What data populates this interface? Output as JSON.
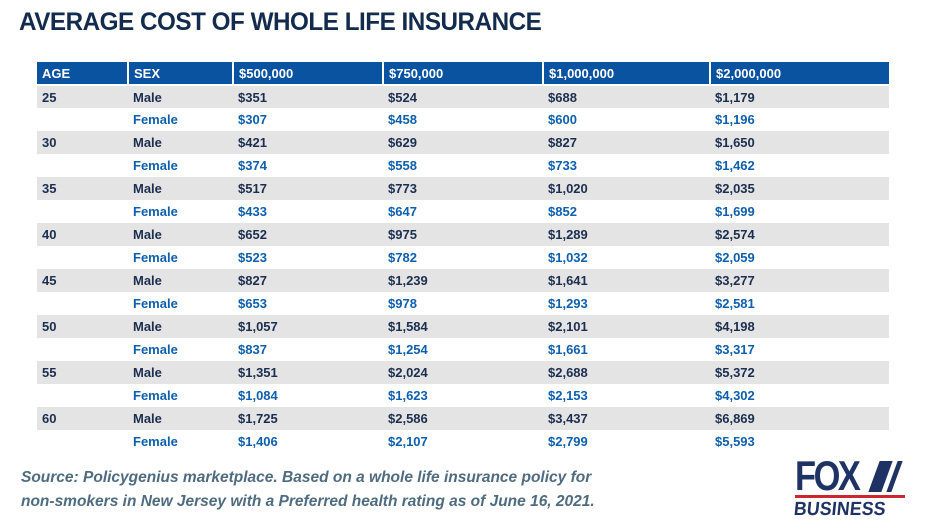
{
  "title": "AVERAGE COST OF WHOLE LIFE INSURANCE",
  "source": {
    "line1": "Source: Policygenius marketplace. Based on a whole life insurance policy for",
    "line2": "non-smokers in New Jersey with a Preferred health rating as of June 16, 2021."
  },
  "logo": {
    "brand": "FOX",
    "sub": "BUSINESS"
  },
  "colors": {
    "header_bg": "#0a53a1",
    "male_row_bg": "#e4e4e4",
    "male_text": "#1c2e4f",
    "female_text": "#0e5fae",
    "title_text": "#132c4e",
    "source_text": "#4f6b80",
    "logo_navy": "#1e3364",
    "logo_red": "#cc2630"
  },
  "chart_data": {
    "type": "table",
    "title": "AVERAGE COST OF WHOLE LIFE INSURANCE",
    "columns": [
      "AGE",
      "SEX",
      "$500,000",
      "$750,000",
      "$1,000,000",
      "$2,000,000"
    ],
    "rows": [
      [
        "25",
        "Male",
        "$351",
        "$524",
        "$688",
        "$1,179"
      ],
      [
        "",
        "Female",
        "$307",
        "$458",
        "$600",
        "$1,196"
      ],
      [
        "30",
        "Male",
        "$421",
        "$629",
        "$827",
        "$1,650"
      ],
      [
        "",
        "Female",
        "$374",
        "$558",
        "$733",
        "$1,462"
      ],
      [
        "35",
        "Male",
        "$517",
        "$773",
        "$1,020",
        "$2,035"
      ],
      [
        "",
        "Female",
        "$433",
        "$647",
        "$852",
        "$1,699"
      ],
      [
        "40",
        "Male",
        "$652",
        "$975",
        "$1,289",
        "$2,574"
      ],
      [
        "",
        "Female",
        "$523",
        "$782",
        "$1,032",
        "$2,059"
      ],
      [
        "45",
        "Male",
        "$827",
        "$1,239",
        "$1,641",
        "$3,277"
      ],
      [
        "",
        "Female",
        "$653",
        "$978",
        "$1,293",
        "$2,581"
      ],
      [
        "50",
        "Male",
        "$1,057",
        "$1,584",
        "$2,101",
        "$4,198"
      ],
      [
        "",
        "Female",
        "$837",
        "$1,254",
        "$1,661",
        "$3,317"
      ],
      [
        "55",
        "Male",
        "$1,351",
        "$2,024",
        "$2,688",
        "$5,372"
      ],
      [
        "",
        "Female",
        "$1,084",
        "$1,623",
        "$2,153",
        "$4,302"
      ],
      [
        "60",
        "Male",
        "$1,725",
        "$2,586",
        "$3,437",
        "$6,869"
      ],
      [
        "",
        "Female",
        "$1,406",
        "$2,107",
        "$2,799",
        "$5,593"
      ]
    ]
  }
}
